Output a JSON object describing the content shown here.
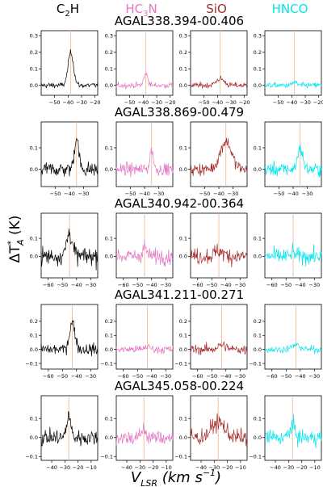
{
  "molecules": [
    {
      "label_prefix": "C",
      "label_sub": "2",
      "label_suffix": "H",
      "color": "#000000"
    },
    {
      "label_prefix": "HC",
      "label_sub": "3",
      "label_suffix": "N",
      "color": "#e377c2"
    },
    {
      "label_prefix": "SiO",
      "label_sub": "",
      "label_suffix": "",
      "color": "#a52a2a"
    },
    {
      "label_prefix": "HNCO",
      "label_sub": "",
      "label_suffix": "",
      "color": "#00e5ee"
    }
  ],
  "ylabel": {
    "main": "ΔT",
    "star": "*",
    "sub": "A",
    "unit": " (K)"
  },
  "xlabel": {
    "main": "V",
    "sub": "LSR",
    "unit": " (km s",
    "exp": "−1",
    "close": ")"
  },
  "line_color": "#f4b183",
  "chart_data": [
    {
      "type": "line",
      "title": "AGAL338.394-00.406",
      "xlim": [
        -60,
        -18
      ],
      "xticks": [
        -50,
        -40,
        -30,
        -20
      ],
      "ylim": [
        -0.06,
        0.33
      ],
      "yticks": [
        0.0,
        0.1,
        0.2,
        0.3
      ],
      "vlsr": -38,
      "lines": [
        {
          "molecule": "C2H",
          "peak": 0.2,
          "width": 2.0,
          "noise": 0.012
        },
        {
          "molecule": "HC3N",
          "peak": 0.07,
          "width": 1.5,
          "noise": 0.012
        },
        {
          "molecule": "SiO",
          "peak": 0.04,
          "width": 3.0,
          "noise": 0.012
        },
        {
          "molecule": "HNCO",
          "peak": 0.02,
          "width": 1.5,
          "noise": 0.012
        }
      ]
    },
    {
      "type": "line",
      "title": "AGAL338.869-00.479",
      "xlim": [
        -60,
        -20
      ],
      "xticks": [
        -50,
        -40,
        -30
      ],
      "ylim": [
        -0.08,
        0.22
      ],
      "yticks": [
        0.0,
        0.1
      ],
      "vlsr": -35,
      "lines": [
        {
          "molecule": "C2H",
          "peak": 0.15,
          "width": 1.5,
          "noise": 0.025
        },
        {
          "molecule": "HC3N",
          "peak": 0.09,
          "width": 1.2,
          "noise": 0.02
        },
        {
          "molecule": "SiO",
          "peak": 0.13,
          "width": 4.0,
          "noise": 0.02
        },
        {
          "molecule": "HNCO",
          "peak": 0.1,
          "width": 1.8,
          "noise": 0.022
        }
      ]
    },
    {
      "type": "line",
      "title": "AGAL340.942-00.364",
      "xlim": [
        -65,
        -25
      ],
      "xticks": [
        -60,
        -50,
        -40,
        -30
      ],
      "ylim": [
        -0.12,
        0.24
      ],
      "yticks": [
        0.0,
        0.1
      ],
      "vlsr": -45,
      "lines": [
        {
          "molecule": "C2H",
          "peak": 0.13,
          "width": 2.0,
          "noise": 0.035
        },
        {
          "molecule": "HC3N",
          "peak": 0.05,
          "width": 1.5,
          "noise": 0.03
        },
        {
          "molecule": "SiO",
          "peak": 0.03,
          "width": 3.0,
          "noise": 0.032
        },
        {
          "molecule": "HNCO",
          "peak": 0.02,
          "width": 1.5,
          "noise": 0.03
        }
      ]
    },
    {
      "type": "line",
      "title": "AGAL341.211-00.271",
      "xlim": [
        -65,
        -25
      ],
      "xticks": [
        -60,
        -50,
        -40,
        -30
      ],
      "ylim": [
        -0.14,
        0.32
      ],
      "yticks": [
        -0.1,
        0.0,
        0.1,
        0.2
      ],
      "vlsr": -43,
      "lines": [
        {
          "molecule": "C2H",
          "peak": 0.19,
          "width": 2.0,
          "noise": 0.03
        },
        {
          "molecule": "HC3N",
          "peak": 0.02,
          "width": 2.0,
          "noise": 0.02
        },
        {
          "molecule": "SiO",
          "peak": 0.03,
          "width": 3.0,
          "noise": 0.025
        },
        {
          "molecule": "HNCO",
          "peak": 0.03,
          "width": 3.0,
          "noise": 0.018
        }
      ]
    },
    {
      "type": "line",
      "title": "AGAL345.058-00.224",
      "xlim": [
        -48,
        -5
      ],
      "xticks": [
        -40,
        -30,
        -20,
        -10
      ],
      "ylim": [
        -0.12,
        0.22
      ],
      "yticks": [
        -0.1,
        0.0,
        0.1
      ],
      "vlsr": -27,
      "lines": [
        {
          "molecule": "C2H",
          "peak": 0.12,
          "width": 1.5,
          "noise": 0.03
        },
        {
          "molecule": "HC3N",
          "peak": 0.05,
          "width": 1.5,
          "noise": 0.03
        },
        {
          "molecule": "SiO",
          "peak": 0.08,
          "width": 5.0,
          "noise": 0.03
        },
        {
          "molecule": "HNCO",
          "peak": 0.06,
          "width": 2.0,
          "noise": 0.03
        }
      ]
    }
  ]
}
